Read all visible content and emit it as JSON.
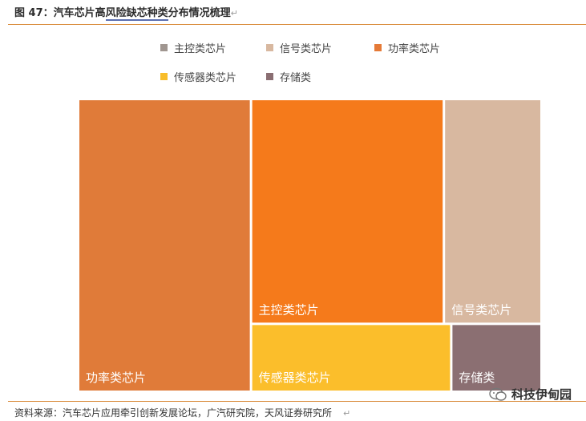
{
  "header": {
    "title_a": "图 47：汽车芯片高",
    "title_b": "风险缺芯种类",
    "title_c": "分布情况梳理",
    "return_mark": "↵"
  },
  "footer": {
    "source": "资料来源：汽车芯片应用牵引创新发展论坛，广汽研究院，天风证券研究所",
    "return_mark": "↵",
    "watermark": "科技伊甸园"
  },
  "chart_data": {
    "type": "treemap",
    "title": "",
    "legend_position": "top",
    "legend": [
      {
        "name": "主控类芯片",
        "color": "#a09690"
      },
      {
        "name": "信号类芯片",
        "color": "#d8b8a0"
      },
      {
        "name": "功率类芯片",
        "color": "#e57a37"
      },
      {
        "name": "传感器类芯片",
        "color": "#f8bd2a"
      },
      {
        "name": "存储类",
        "color": "#8a6e72"
      }
    ],
    "nodes": [
      {
        "name": "功率类芯片",
        "value": 37.5,
        "color": "#e07b39"
      },
      {
        "name": "主控类芯片",
        "value": 32.4,
        "color": "#f57a1b"
      },
      {
        "name": "信号类芯片",
        "value": 16.0,
        "color": "#d8b8a0"
      },
      {
        "name": "传感器类芯片",
        "value": 9.8,
        "color": "#fbbe2b"
      },
      {
        "name": "存储类",
        "value": 4.3,
        "color": "#8b6f72"
      }
    ]
  }
}
